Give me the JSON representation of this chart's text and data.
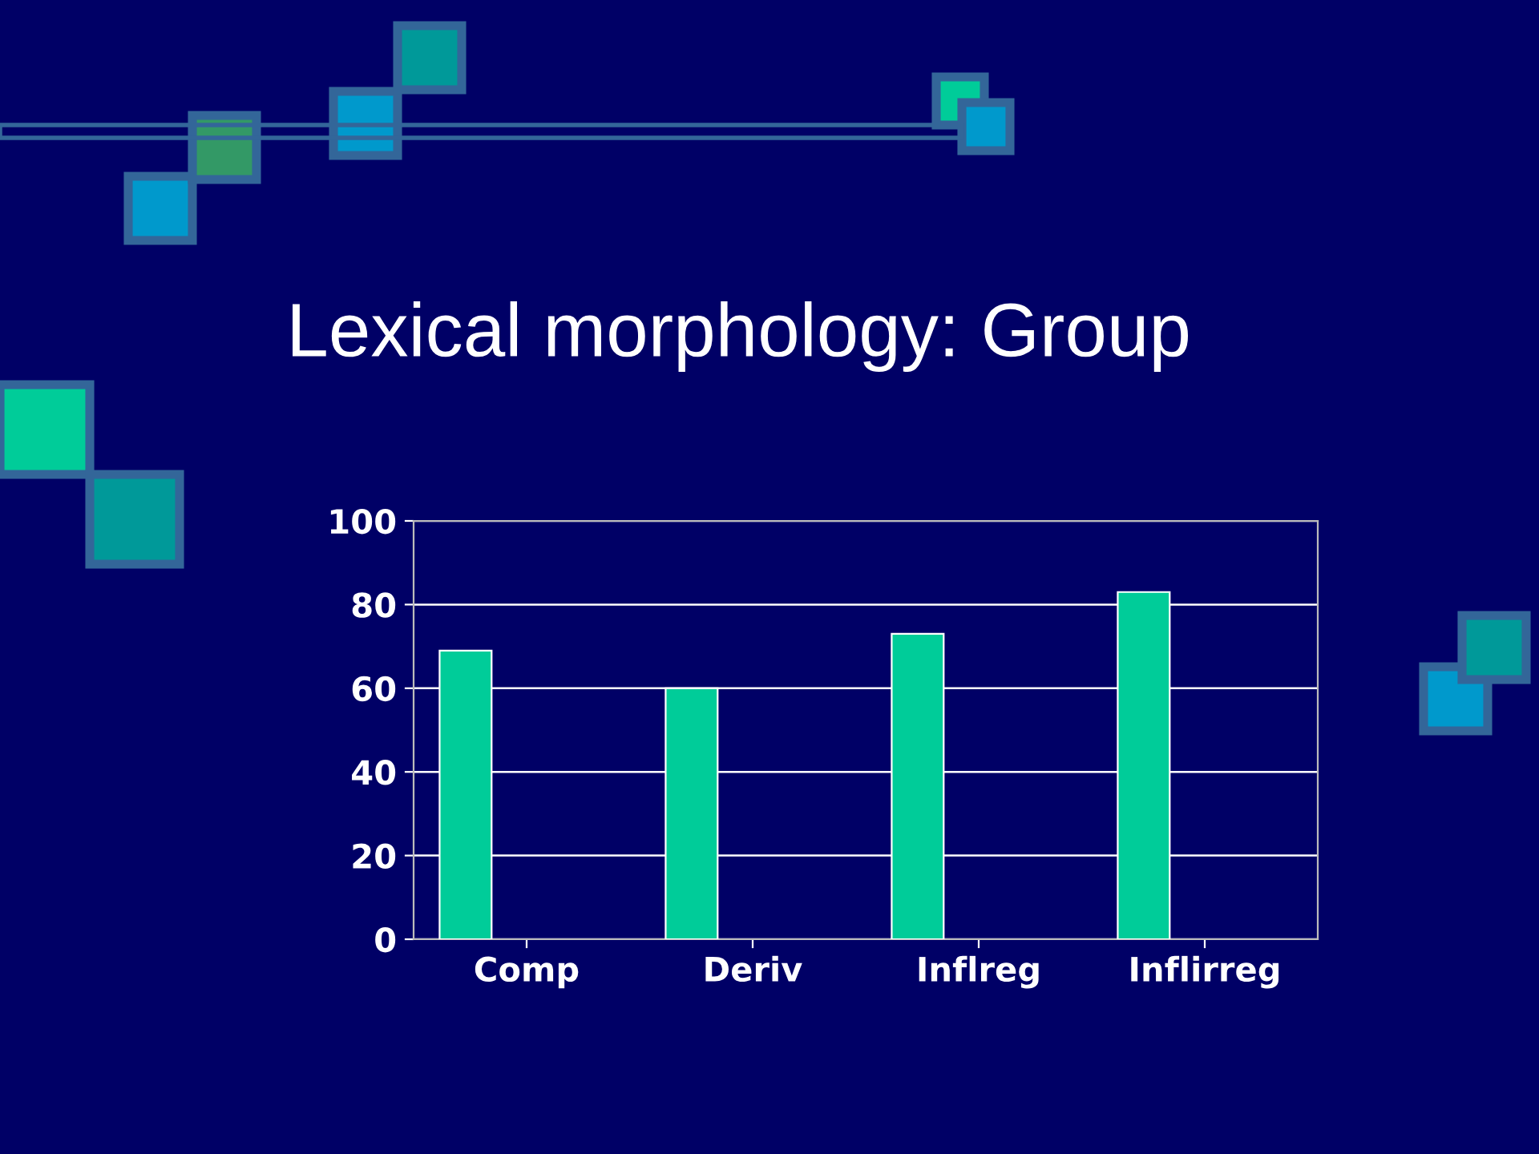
{
  "chart_data": {
    "type": "bar",
    "title": "Lexical morphology: Group",
    "categories": [
      "Comp",
      "Deriv",
      "Inflreg",
      "Inflirreg"
    ],
    "values": [
      69,
      60,
      73,
      83
    ],
    "color": "#00cc99",
    "ylim": [
      0,
      100
    ],
    "yticks": [
      0,
      20,
      40,
      60,
      80,
      100
    ],
    "grid": "y"
  }
}
